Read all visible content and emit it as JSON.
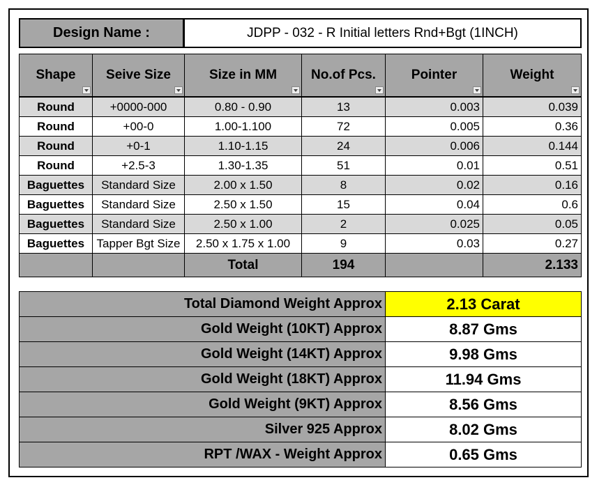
{
  "design": {
    "label": "Design Name :",
    "value": "JDPP - 032 - R Initial letters Rnd+Bgt  (1INCH)"
  },
  "table": {
    "headers": [
      "Shape",
      "Seive Size",
      "Size in MM",
      "No.of Pcs.",
      "Pointer",
      "Weight"
    ],
    "rows": [
      [
        "Round",
        "+0000-000",
        "0.80 - 0.90",
        13,
        0.003,
        0.039
      ],
      [
        "Round",
        "+00-0",
        "1.00-1.100",
        72,
        0.005,
        0.36
      ],
      [
        "Round",
        "+0-1",
        "1.10-1.15",
        24,
        0.006,
        0.144
      ],
      [
        "Round",
        "+2.5-3",
        "1.30-1.35",
        51,
        0.01,
        0.51
      ],
      [
        "Baguettes",
        "Standard Size",
        "2.00 x 1.50",
        8,
        0.02,
        0.16
      ],
      [
        "Baguettes",
        "Standard Size",
        "2.50 x 1.50",
        15,
        0.04,
        0.6
      ],
      [
        "Baguettes",
        "Standard Size",
        "2.50 x 1.00",
        2,
        0.025,
        0.05
      ],
      [
        "Baguettes",
        "Tapper Bgt Size",
        "2.50 x 1.75 x 1.00",
        9,
        0.03,
        0.27
      ]
    ],
    "total": {
      "label": "Total",
      "pcs": 194,
      "weight": 2.133
    }
  },
  "summary": [
    {
      "label": "Total Diamond Weight Approx",
      "value": "2.13 Carat"
    },
    {
      "label": "Gold Weight (10KT) Approx",
      "value": "8.87 Gms"
    },
    {
      "label": "Gold Weight (14KT) Approx",
      "value": "9.98 Gms"
    },
    {
      "label": "Gold Weight (18KT) Approx",
      "value": "11.94 Gms"
    },
    {
      "label": "Gold Weight (9KT) Approx",
      "value": "8.56 Gms"
    },
    {
      "label": "Silver 925 Approx",
      "value": "8.02 Gms"
    },
    {
      "label": "RPT /WAX - Weight Approx",
      "value": "0.65 Gms"
    }
  ]
}
